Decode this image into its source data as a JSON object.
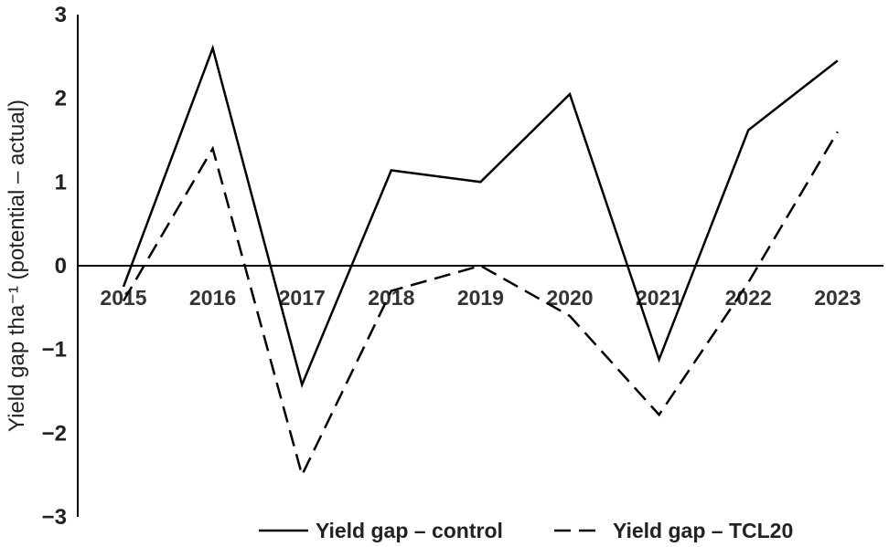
{
  "chart_data": {
    "type": "line",
    "title": "",
    "xlabel": "",
    "ylabel": "Yield gap tha⁻¹ (potential – actual)",
    "categories": [
      "2015",
      "2016",
      "2017",
      "2018",
      "2019",
      "2020",
      "2021",
      "2022",
      "2023"
    ],
    "ylim": [
      -3,
      3
    ],
    "yticks": [
      "3",
      "2",
      "1",
      "0",
      "−1",
      "−2",
      "−3"
    ],
    "grid": false,
    "legend": "bottom",
    "series": [
      {
        "name": "Yield gap – control",
        "style": "solid",
        "color": "#000000",
        "values": [
          -0.25,
          2.6,
          -1.42,
          1.14,
          1.0,
          2.05,
          -1.12,
          1.62,
          2.45
        ]
      },
      {
        "name": "Yield gap – TCL20",
        "style": "dashed",
        "color": "#000000",
        "values": [
          -0.42,
          1.4,
          -2.5,
          -0.3,
          0.0,
          -0.6,
          -1.78,
          -0.2,
          1.6
        ]
      }
    ]
  }
}
